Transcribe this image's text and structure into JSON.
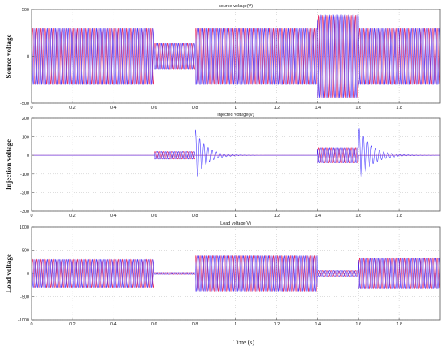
{
  "chart_data": [
    {
      "type": "line",
      "title": "source voltage(V)",
      "ylabel": "Source voltage",
      "xlim": [
        0,
        2
      ],
      "ylim": [
        -500,
        500
      ],
      "yticks": [
        -500,
        0,
        500
      ],
      "xticks": [
        0,
        0.2,
        0.4,
        0.6,
        0.8,
        1,
        1.2,
        1.4,
        1.6,
        1.8
      ],
      "grid": true,
      "series": [
        {
          "color": "#e8003d",
          "phase_deg": 0
        },
        {
          "color": "#2a1aff",
          "phase_deg": 120
        },
        {
          "color": "#7a3cd6",
          "phase_deg": 240
        }
      ],
      "frequency_hz": 50,
      "envelope": [
        {
          "t_start": 0.0,
          "t_end": 0.6,
          "amplitude": 300
        },
        {
          "t_start": 0.6,
          "t_end": 0.8,
          "amplitude": 140
        },
        {
          "t_start": 0.8,
          "t_end": 1.4,
          "amplitude": 300
        },
        {
          "t_start": 1.4,
          "t_end": 1.6,
          "amplitude": 440
        },
        {
          "t_start": 1.6,
          "t_end": 2.0,
          "amplitude": 300
        }
      ]
    },
    {
      "type": "line",
      "title": "Injected Voltage(V)",
      "ylabel": "Injection voltage",
      "xlim": [
        0,
        2
      ],
      "ylim": [
        -300,
        200
      ],
      "yticks": [
        -300,
        -200,
        -100,
        0,
        100,
        200
      ],
      "xticks": [
        0,
        0.2,
        0.4,
        0.6,
        0.8,
        1,
        1.2,
        1.4,
        1.6,
        1.8
      ],
      "grid": true,
      "series": [
        {
          "color": "#e8003d",
          "phase_deg": 0
        },
        {
          "color": "#2a1aff",
          "phase_deg": 120
        },
        {
          "color": "#7a3cd6",
          "phase_deg": 240
        }
      ],
      "frequency_hz": 50,
      "envelope": [
        {
          "t_start": 0.6,
          "t_end": 0.8,
          "amplitude": 20
        },
        {
          "t_start": 1.4,
          "t_end": 1.6,
          "amplitude": 40
        }
      ],
      "transients": [
        {
          "t": 0.8,
          "peak": 140,
          "min": -150,
          "decay_s": 0.05
        },
        {
          "t": 1.6,
          "peak": 70,
          "min": -230,
          "decay_s": 0.06
        }
      ]
    },
    {
      "type": "line",
      "title": "Load voltage(V)",
      "ylabel": "Load voltage",
      "xlabel": "Time (s)",
      "xlim": [
        0,
        2
      ],
      "ylim": [
        -1000,
        1000
      ],
      "yticks": [
        -1000,
        -500,
        0,
        500,
        1000
      ],
      "xticks": [
        0,
        0.2,
        0.4,
        0.6,
        0.8,
        1,
        1.2,
        1.4,
        1.6,
        1.8
      ],
      "grid": true,
      "series": [
        {
          "color": "#e8003d",
          "phase_deg": 0
        },
        {
          "color": "#2a1aff",
          "phase_deg": 120
        },
        {
          "color": "#7a3cd6",
          "phase_deg": 240
        }
      ],
      "frequency_hz": 50,
      "envelope": [
        {
          "t_start": 0.0,
          "t_end": 0.6,
          "amplitude": 300
        },
        {
          "t_start": 0.6,
          "t_end": 0.8,
          "amplitude": 20
        },
        {
          "t_start": 0.8,
          "t_end": 1.4,
          "amplitude": 380
        },
        {
          "t_start": 1.4,
          "t_end": 1.6,
          "amplitude": 60
        },
        {
          "t_start": 1.6,
          "t_end": 2.0,
          "amplitude": 330
        }
      ]
    }
  ]
}
